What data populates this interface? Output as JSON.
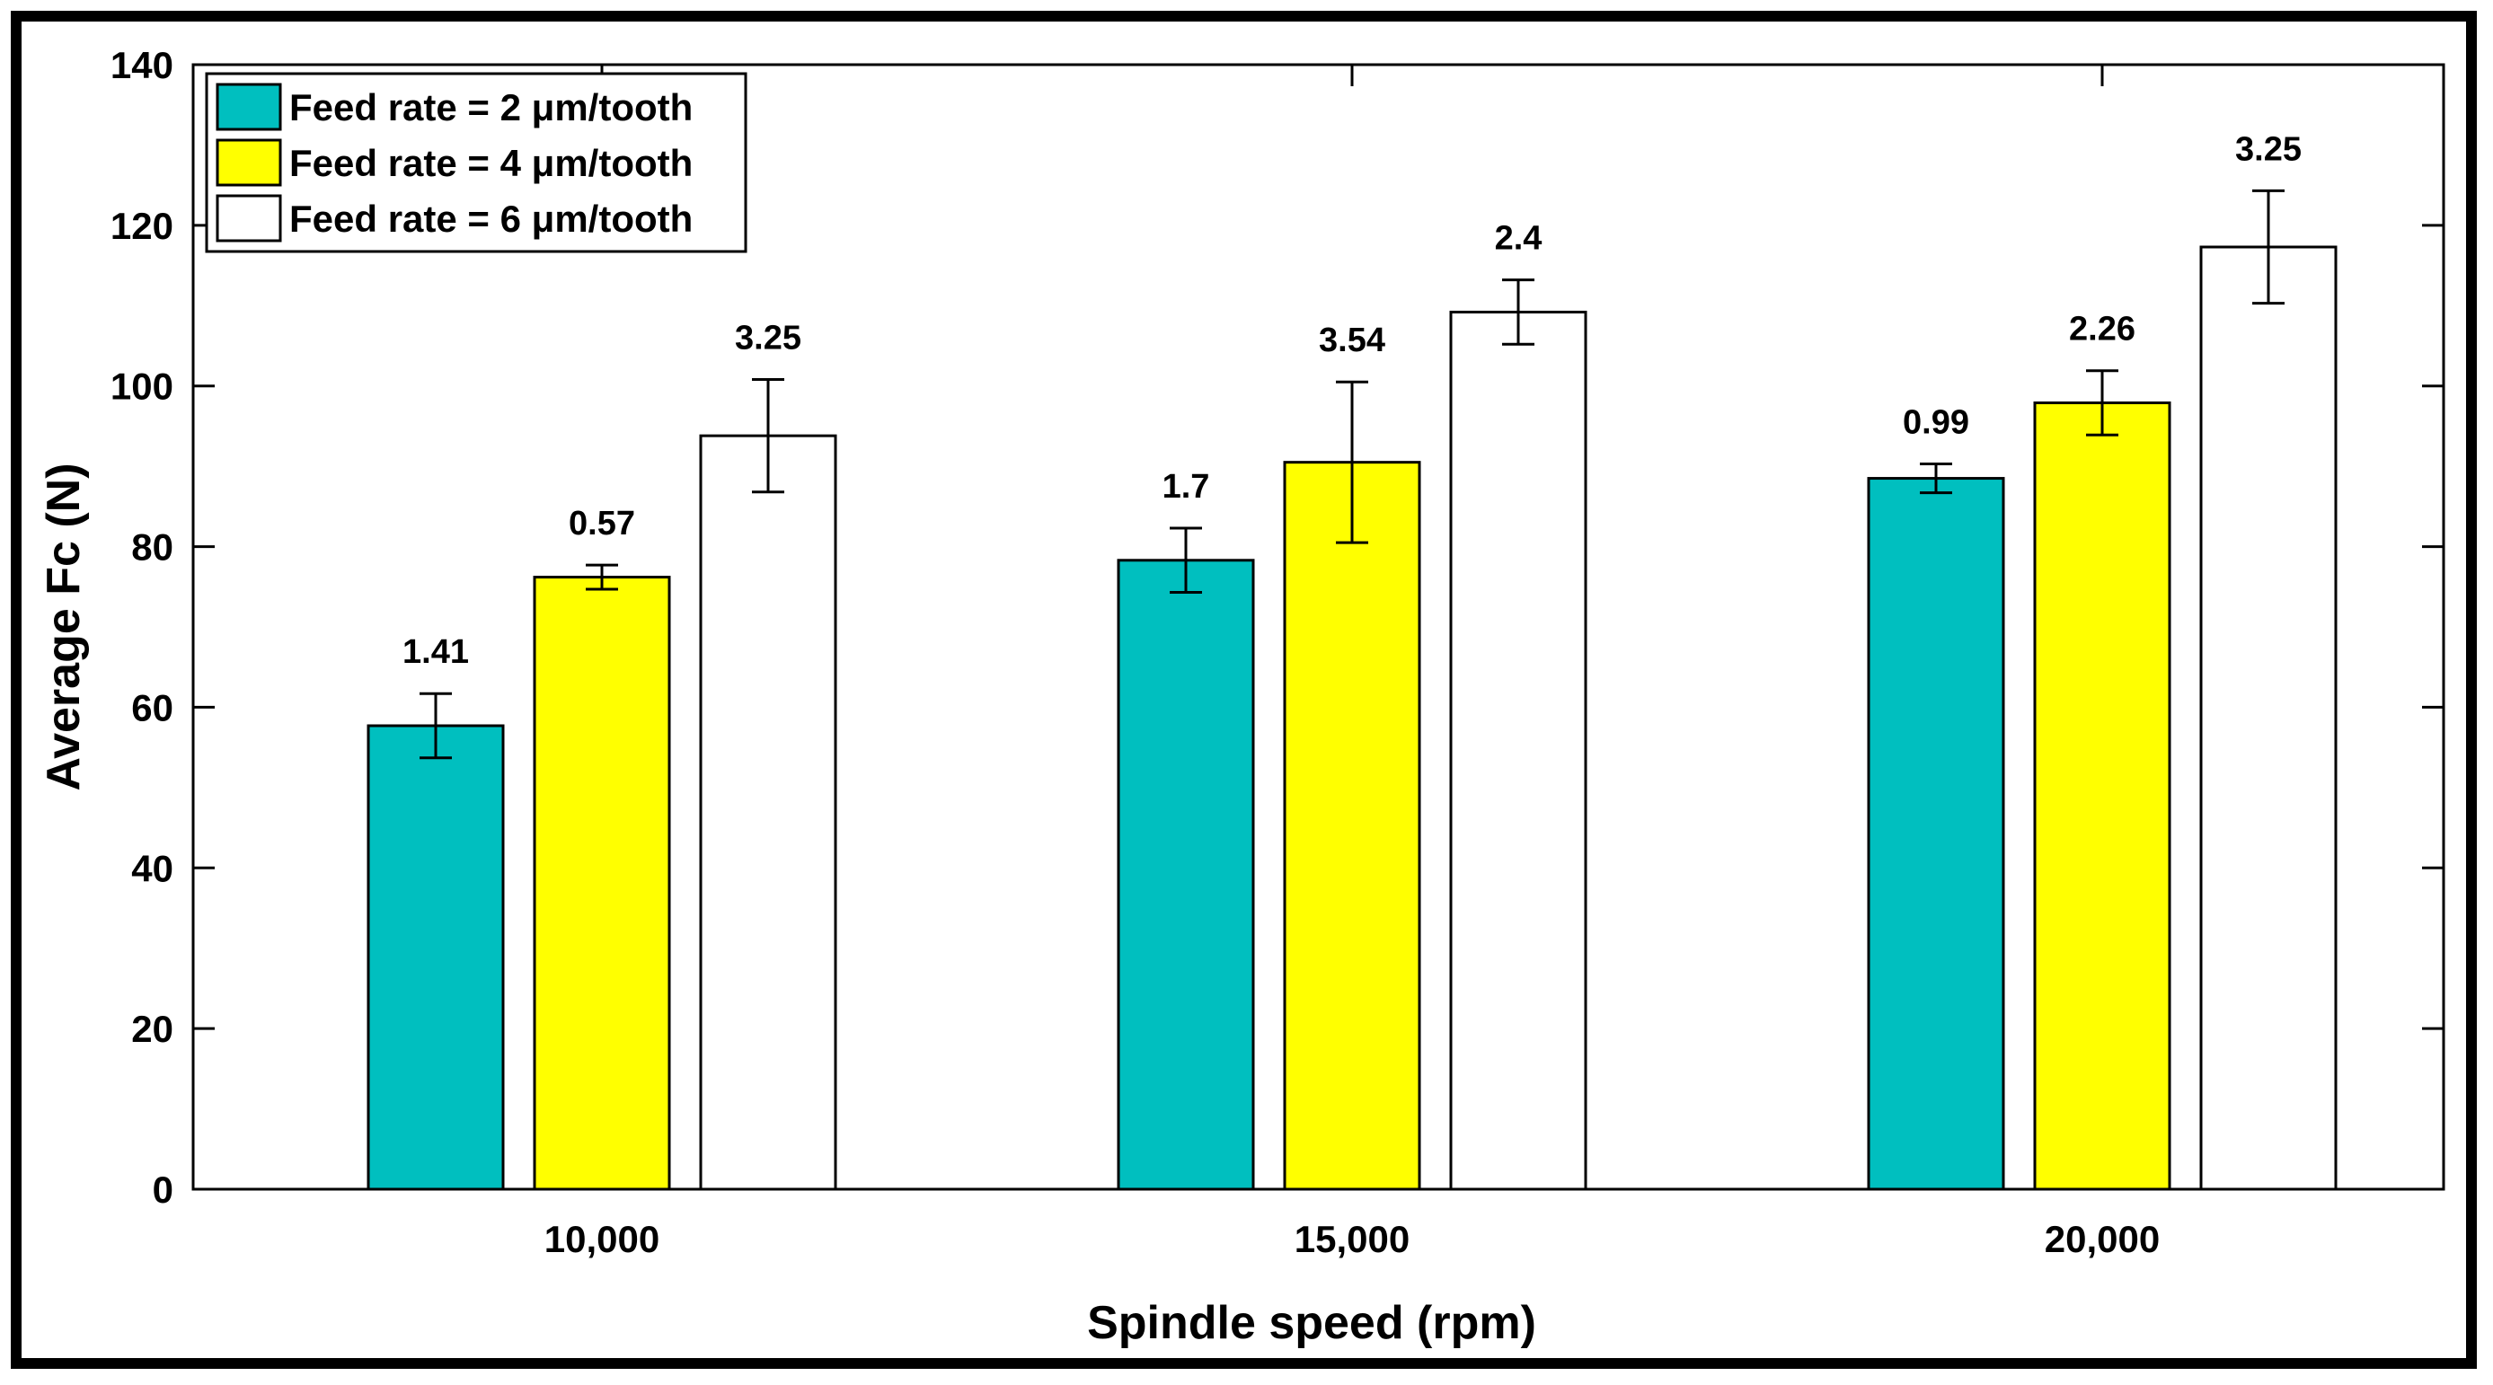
{
  "chart_data": {
    "type": "bar",
    "title": "",
    "xlabel": "Spindle speed (rpm)",
    "ylabel": "Average Fc (N)",
    "ylim": [
      0,
      140
    ],
    "yticks": [
      "0",
      "20",
      "40",
      "60",
      "80",
      "100",
      "120",
      "140"
    ],
    "categories": [
      "10,000",
      "15,000",
      "20,000"
    ],
    "series": [
      {
        "name": "Feed rate = 2 μm/tooth",
        "color": "#00bfbf",
        "values": [
          57.7,
          78.3,
          88.5
        ],
        "errors": [
          4.0,
          4.0,
          1.8
        ],
        "labels": [
          "1.41",
          "1.7",
          "0.99"
        ]
      },
      {
        "name": "Feed rate = 4 μm/tooth",
        "color": "#ffff00",
        "values": [
          76.2,
          90.5,
          97.9
        ],
        "errors": [
          1.5,
          10.0,
          4.0
        ],
        "labels": [
          "0.57",
          "3.54",
          "2.26"
        ]
      },
      {
        "name": "Feed rate = 6 μm/tooth",
        "color": "#ffffff",
        "values": [
          93.8,
          109.2,
          117.3
        ],
        "errors": [
          7.0,
          4.0,
          7.0
        ],
        "labels": [
          "3.25",
          "2.4",
          "3.25"
        ]
      }
    ],
    "legend_position": "top-left",
    "grid": false
  }
}
